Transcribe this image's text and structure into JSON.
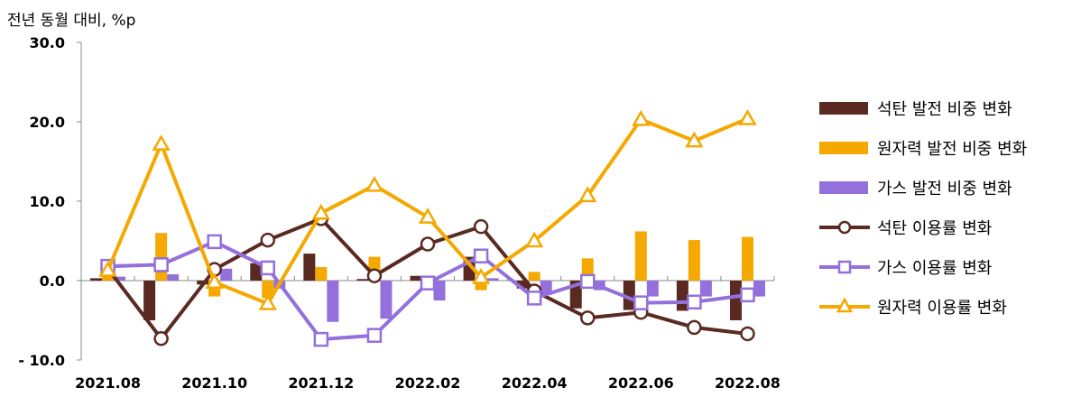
{
  "chart_data": {
    "type": "bar+line",
    "unit_label": "전년 동월 대비, %p",
    "categories": [
      "2021.08",
      "2021.09",
      "2021.10",
      "2021.11",
      "2021.12",
      "2022.01",
      "2022.02",
      "2022.03",
      "2022.04",
      "2022.05",
      "2022.06",
      "2022.07",
      "2022.08"
    ],
    "x_tick_labels": [
      "2021.08",
      "2021.10",
      "2021.12",
      "2022.02",
      "2022.04",
      "2022.06",
      "2022.08"
    ],
    "ylim": [
      -10,
      30
    ],
    "y_tick_labels": [
      "30.0",
      "20.0",
      "10.0",
      "0.0",
      "- 10.0"
    ],
    "y_ticks": [
      30,
      20,
      10,
      0,
      -10
    ],
    "bar_series": [
      {
        "name": "석탄 발전 비중 변화",
        "color": "#5a2a22",
        "values": [
          0.3,
          -5.0,
          -0.5,
          2.2,
          3.4,
          0.2,
          0.6,
          3.0,
          -1.0,
          -3.5,
          -3.7,
          -3.8,
          -5.0
        ]
      },
      {
        "name": "원자력 발전 비중 변화",
        "color": "#f5a800",
        "values": [
          1.0,
          6.0,
          -2.0,
          -2.2,
          1.7,
          3.0,
          0.2,
          -1.2,
          1.1,
          2.8,
          6.2,
          5.1,
          5.5
        ]
      },
      {
        "name": "가스 발전 비중 변화",
        "color": "#9370db",
        "values": [
          0.5,
          0.8,
          1.5,
          -1.0,
          -5.2,
          -4.8,
          -2.5,
          0.3,
          -1.8,
          -1.2,
          -2.0,
          -2.0,
          -2.0
        ]
      }
    ],
    "line_series": [
      {
        "name": "석탄 이용률 변화",
        "color": "#5a2a22",
        "marker": "circle",
        "values": [
          1.5,
          -7.3,
          1.4,
          5.1,
          7.8,
          0.6,
          4.6,
          6.8,
          -1.3,
          -4.7,
          -4.0,
          -5.9,
          -6.7
        ]
      },
      {
        "name": "가스 이용률 변화",
        "color": "#9370db",
        "marker": "square",
        "values": [
          1.8,
          2.0,
          4.9,
          1.6,
          -7.4,
          -6.9,
          -0.3,
          3.1,
          -2.2,
          -0.1,
          -2.8,
          -2.7,
          -1.8
        ]
      },
      {
        "name": "원자력 이용률 변화",
        "color": "#f5a800",
        "marker": "triangle",
        "values": [
          1.3,
          17.2,
          -0.2,
          -2.9,
          8.5,
          12.0,
          8.0,
          0.4,
          5.0,
          10.7,
          20.3,
          17.6,
          20.4
        ]
      }
    ],
    "legend_position": "right",
    "grid": false
  }
}
